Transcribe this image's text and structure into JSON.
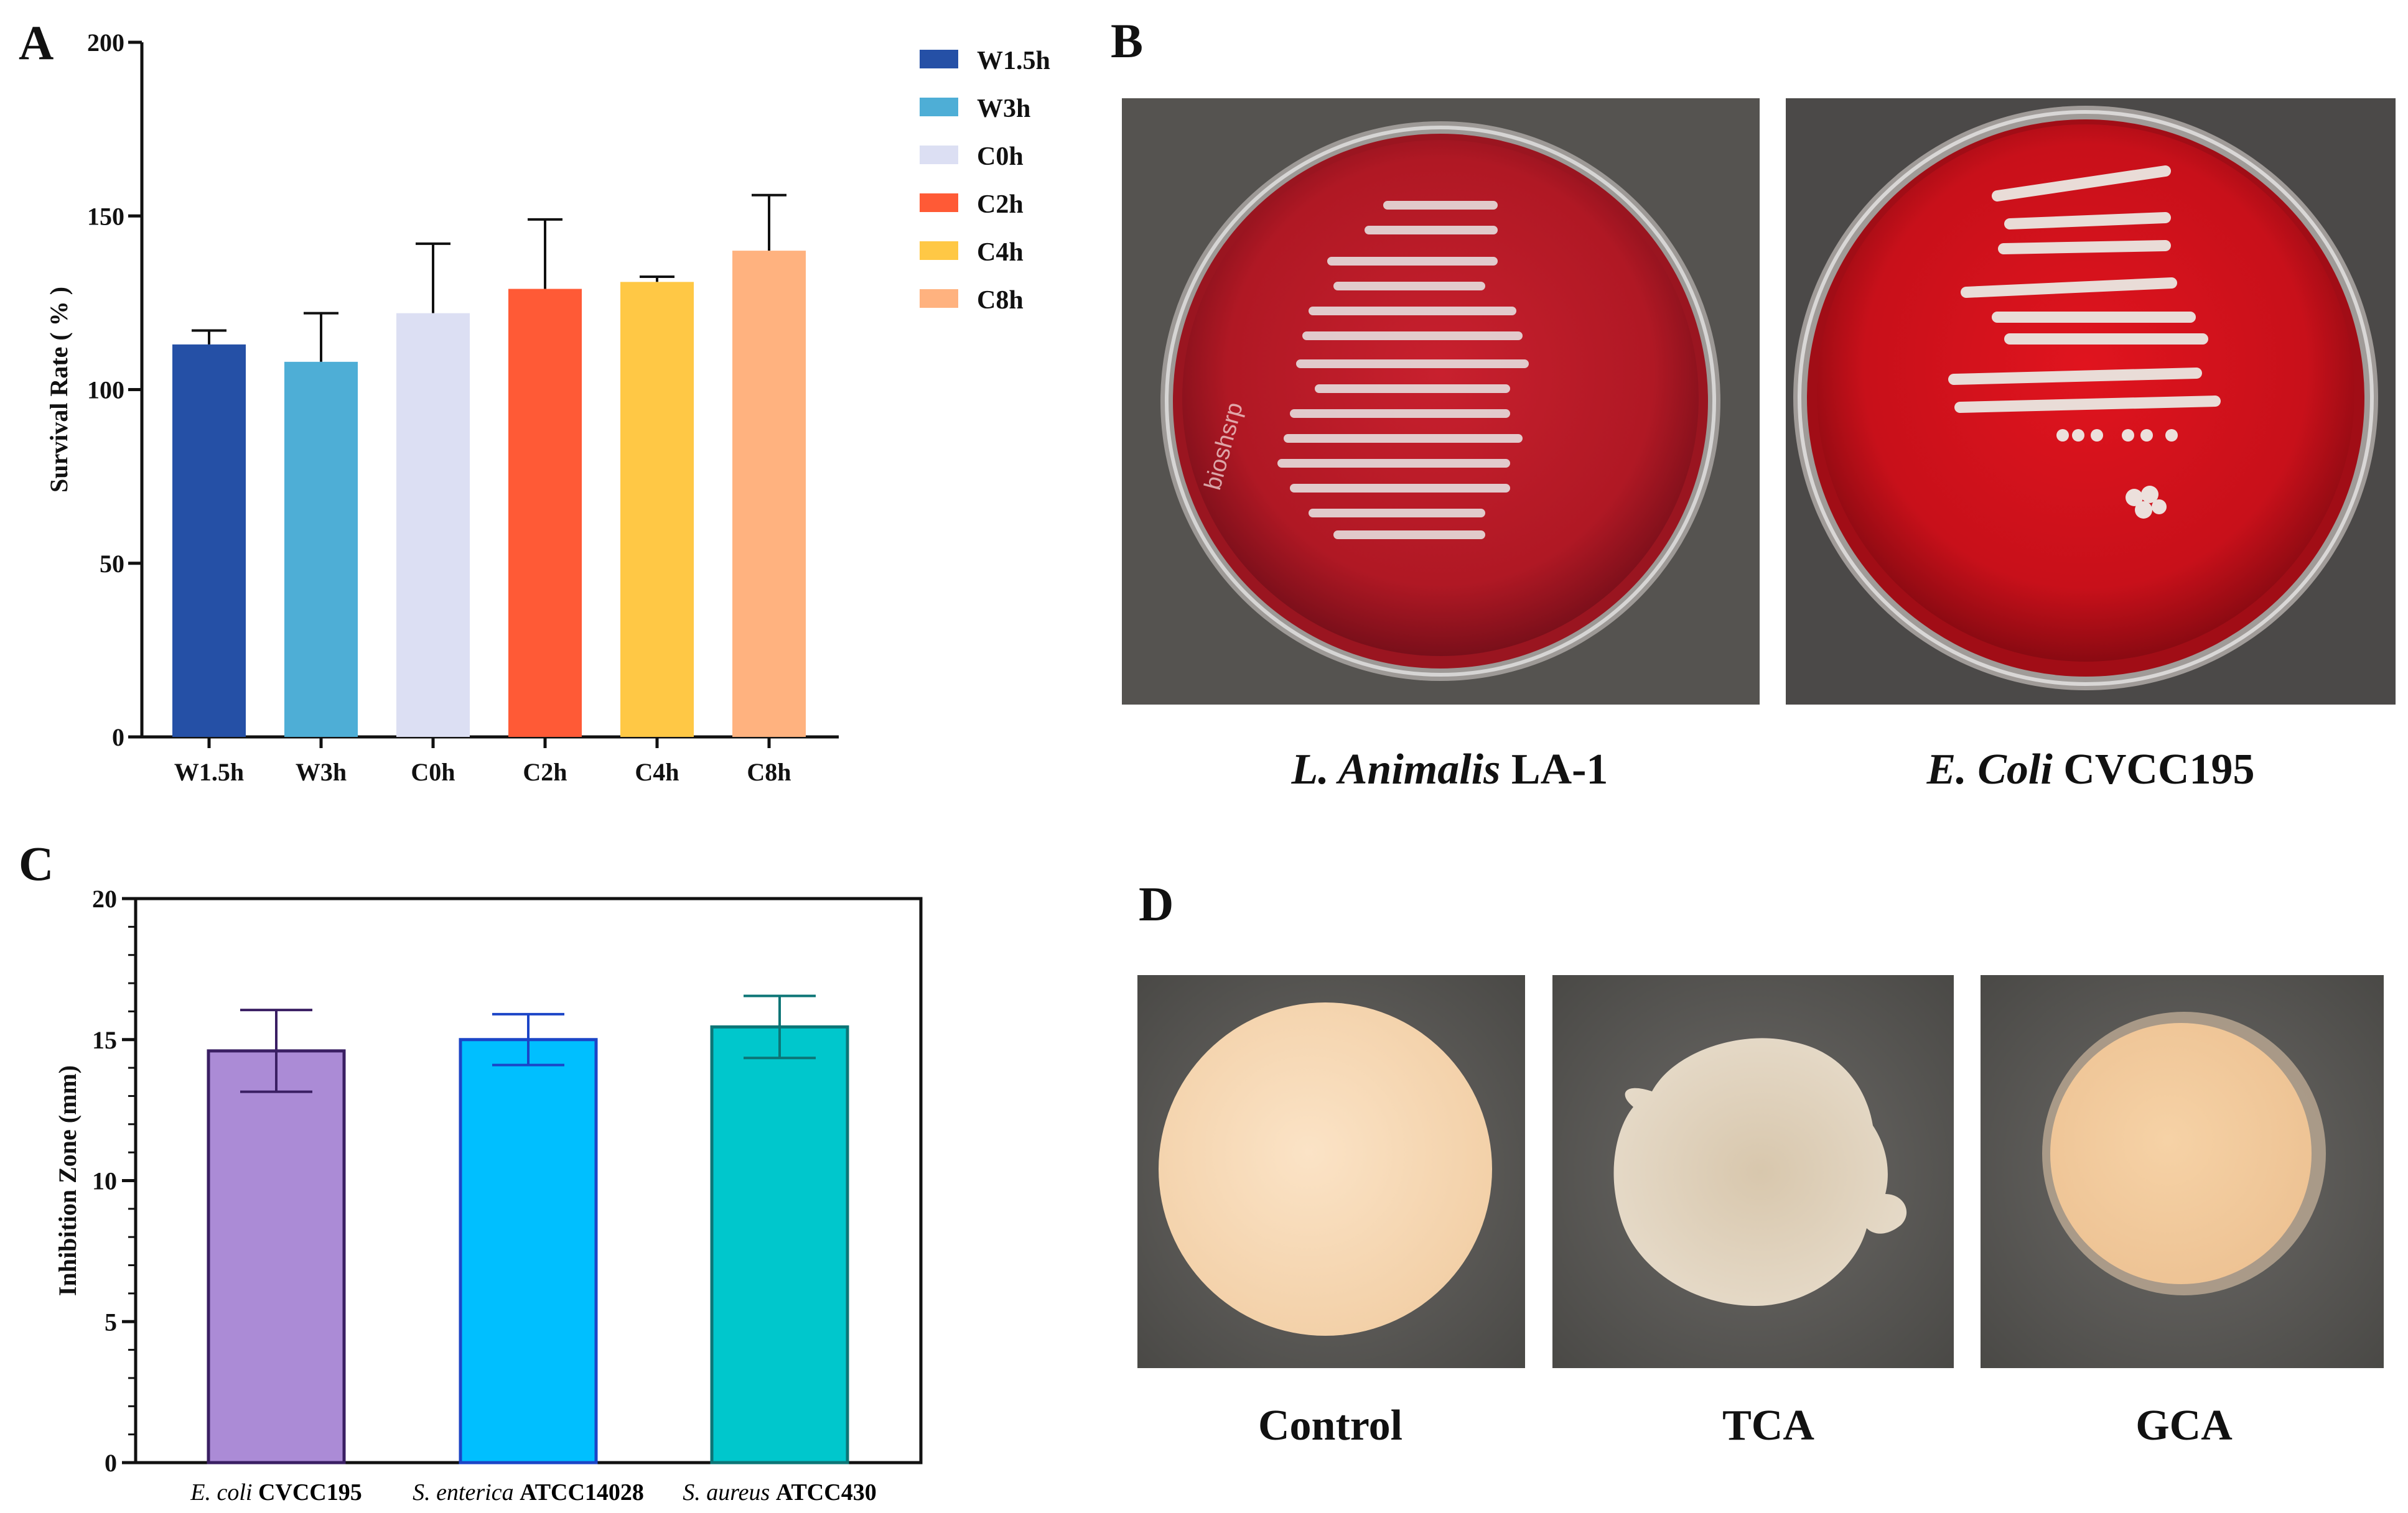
{
  "panels": {
    "A": "A",
    "B": "B",
    "C": "C",
    "D": "D"
  },
  "chart_data": [
    {
      "type": "bar",
      "panel": "A",
      "ylabel": "Survival Rate ( % )",
      "ylim": [
        0,
        200
      ],
      "yticks": [
        0,
        50,
        100,
        150,
        200
      ],
      "categories": [
        "W1.5h",
        "W3h",
        "C0h",
        "C2h",
        "C4h",
        "C8h"
      ],
      "values": [
        113,
        108,
        122,
        129,
        131,
        140
      ],
      "errors": [
        4,
        14,
        20,
        20,
        1.5,
        16
      ],
      "colors": [
        "#2550a6",
        "#4eaed6",
        "#dcdff3",
        "#ff5a36",
        "#ffc845",
        "#ffb27f"
      ],
      "legend": [
        "W1.5h",
        "W3h",
        "C0h",
        "C2h",
        "C4h",
        "C8h"
      ],
      "legend_position": "top-right"
    },
    {
      "type": "bar",
      "panel": "C",
      "ylabel": "Inhibition Zone (mm)",
      "ylim": [
        0,
        20
      ],
      "yticks": [
        0,
        5,
        10,
        15,
        20
      ],
      "categories": [
        {
          "italic": "E. coli",
          "plain": "CVCC195"
        },
        {
          "italic": "S. enterica",
          "plain": "ATCC14028"
        },
        {
          "italic": "S. aureus",
          "plain": "ATCC430"
        }
      ],
      "values": [
        14.6,
        15.0,
        15.45
      ],
      "errors": [
        1.45,
        0.9,
        1.1
      ],
      "colors": [
        "#ab8bd6",
        "#00bfff",
        "#00c7cc"
      ],
      "edge_colors": [
        "#3a1f63",
        "#1b45c7",
        "#0c7576"
      ]
    }
  ],
  "photos_B": {
    "captions": [
      {
        "italic": "L. Animalis",
        "plain": "LA-1"
      },
      {
        "italic": "E. Coli",
        "plain": "CVCC195"
      }
    ],
    "plate_text": "bioshsrp"
  },
  "photos_D": {
    "captions": [
      "Control",
      "TCA",
      "GCA"
    ]
  }
}
